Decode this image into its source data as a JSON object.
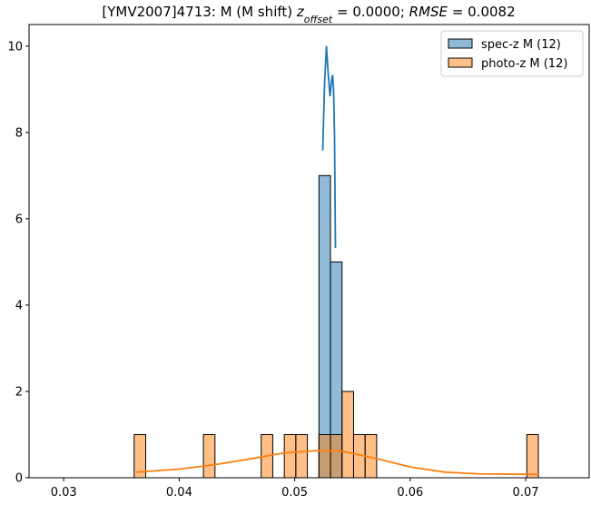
{
  "chart_data": {
    "type": "histogram",
    "title": [
      {
        "text": "[YMV2007]4713: M (M shift) "
      },
      {
        "text": "z",
        "style": "italic"
      },
      {
        "text": "offset",
        "style": "sub"
      },
      {
        "text": " = 0.0000; "
      },
      {
        "text": "RMSE",
        "style": "italic"
      },
      {
        "text": " = 0.0082"
      }
    ],
    "xlim": [
      0.027,
      0.0755
    ],
    "ylim": [
      0,
      10.5
    ],
    "xticks": [
      0.03,
      0.04,
      0.05,
      0.06,
      0.07
    ],
    "yticks": [
      0,
      2,
      4,
      6,
      8,
      10
    ],
    "legend": "upper right",
    "series": [
      {
        "name": "spec-z M (12)",
        "color": "#1f77b4",
        "bins": [
          0.0521,
          0.0531,
          0.0541
        ],
        "counts": [
          7,
          5
        ],
        "kde_x": [
          0.05243,
          0.05259,
          0.05275,
          0.0529,
          0.05306,
          0.05322,
          0.05329,
          0.05337,
          0.05345,
          0.05353
        ],
        "kde_y": [
          7.58,
          9.16,
          10.0,
          9.37,
          8.84,
          9.26,
          9.33,
          8.97,
          7.91,
          5.32
        ]
      },
      {
        "name": "photo-z M (12)",
        "color": "#ff7f0e",
        "bins": [
          0.0361,
          0.0371,
          0.0381,
          0.0391,
          0.0401,
          0.0411,
          0.0421,
          0.0431,
          0.0441,
          0.0451,
          0.0461,
          0.0471,
          0.0481,
          0.0491,
          0.0501,
          0.0511,
          0.0521,
          0.0531,
          0.0541,
          0.0551,
          0.0561,
          0.0571,
          0.0581,
          0.0591,
          0.0601,
          0.0611,
          0.0621,
          0.0631,
          0.0641,
          0.0651,
          0.0661,
          0.0671,
          0.0681,
          0.0691,
          0.0701,
          0.0711
        ],
        "counts": [
          1,
          0,
          0,
          0,
          0,
          0,
          1,
          0,
          0,
          0,
          0,
          1,
          0,
          1,
          1,
          0,
          1,
          1,
          2,
          1,
          1,
          0,
          0,
          0,
          0,
          0,
          0,
          0,
          0,
          0,
          0,
          0,
          0,
          0,
          1
        ],
        "kde_x": [
          0.0363,
          0.04,
          0.043,
          0.046,
          0.049,
          0.052,
          0.054,
          0.057,
          0.06,
          0.063,
          0.066,
          0.07,
          0.0711
        ],
        "kde_y": [
          0.13,
          0.2,
          0.3,
          0.43,
          0.57,
          0.63,
          0.62,
          0.45,
          0.25,
          0.13,
          0.09,
          0.08,
          0.08
        ]
      }
    ]
  }
}
